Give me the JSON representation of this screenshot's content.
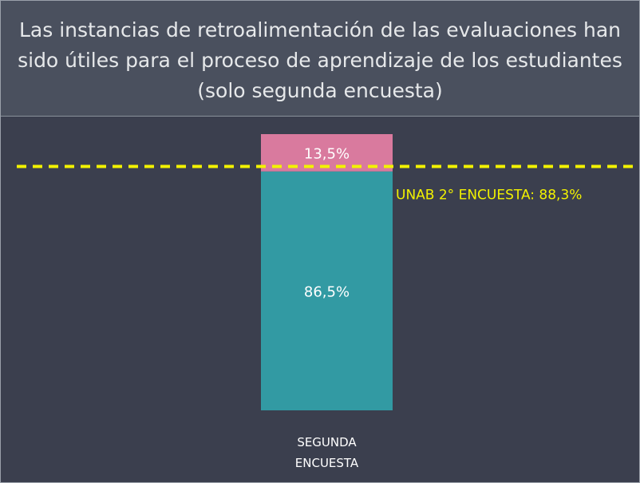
{
  "chart_data": {
    "type": "stacked_bar",
    "title": "Las instancias de retroalimentación de las evaluaciones han sido útiles para el proceso de aprendizaje de los estudiantes (solo segunda encuesta)",
    "categories": [
      "SEGUNDA ENCUESTA"
    ],
    "series": [
      {
        "color": "#329aa3",
        "values": [
          86.5
        ],
        "value_labels": [
          "86,5%"
        ]
      },
      {
        "color": "#d97a9e",
        "values": [
          13.5
        ],
        "value_labels": [
          "13,5%"
        ]
      }
    ],
    "reference_line": {
      "value": 88.3,
      "label": "UNAB 2° ENCUESTA: 88,3%",
      "color": "#f2f200"
    },
    "ylim": [
      0,
      100
    ]
  }
}
